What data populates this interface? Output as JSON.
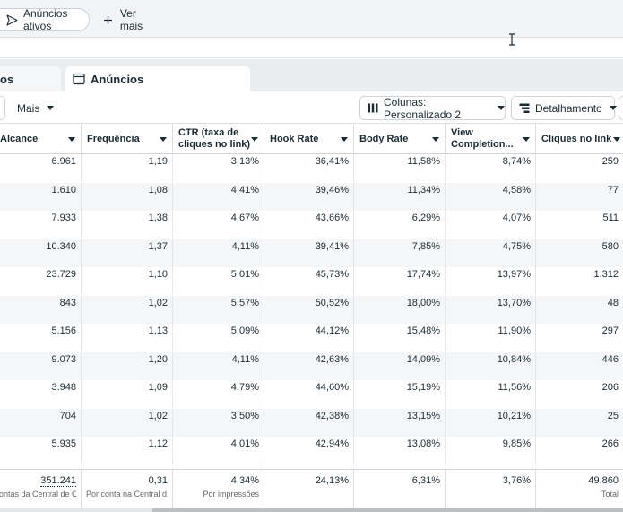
{
  "filters": {
    "active_chip": "Anúncios ativos",
    "more_chip": "Ver mais"
  },
  "tabs": {
    "left_partial": "os",
    "ads": "Anúncios"
  },
  "toolbar": {
    "mais": "Mais",
    "columns": "Colunas: Personalizado 2",
    "breakdown": "Detalhamento"
  },
  "table": {
    "headers": [
      {
        "line1": "Alcance",
        "line2": ""
      },
      {
        "line1": "Frequência",
        "line2": ""
      },
      {
        "line1": "CTR (taxa de",
        "line2": "cliques no link)"
      },
      {
        "line1": "Hook Rate",
        "line2": ""
      },
      {
        "line1": "Body Rate",
        "line2": ""
      },
      {
        "line1": "View",
        "line2": "Completion..."
      },
      {
        "line1": "Cliques no link",
        "line2": ""
      }
    ],
    "rows": [
      [
        "6.961",
        "1,19",
        "3,13%",
        "36,41%",
        "11,58%",
        "8,74%",
        "259"
      ],
      [
        "1.610",
        "1,08",
        "4,41%",
        "39,46%",
        "11,34%",
        "4,58%",
        "77"
      ],
      [
        "7.933",
        "1,38",
        "4,67%",
        "43,66%",
        "6,29%",
        "4,07%",
        "511"
      ],
      [
        "10.340",
        "1,37",
        "4,11%",
        "39,41%",
        "7,85%",
        "4,75%",
        "580"
      ],
      [
        "23.729",
        "1,10",
        "5,01%",
        "45,73%",
        "17,74%",
        "13,97%",
        "1.312"
      ],
      [
        "843",
        "1,02",
        "5,57%",
        "50,52%",
        "18,00%",
        "13,70%",
        "48"
      ],
      [
        "5.156",
        "1,13",
        "5,09%",
        "44,12%",
        "15,48%",
        "11,90%",
        "297"
      ],
      [
        "9.073",
        "1,20",
        "4,11%",
        "42,63%",
        "14,09%",
        "10,84%",
        "446"
      ],
      [
        "3.948",
        "1,09",
        "4,79%",
        "44,60%",
        "15,19%",
        "11,56%",
        "206"
      ],
      [
        "704",
        "1,02",
        "3,50%",
        "42,38%",
        "13,15%",
        "10,21%",
        "25"
      ],
      [
        "5.935",
        "1,12",
        "4,01%",
        "42,94%",
        "13,08%",
        "9,85%",
        "266"
      ]
    ],
    "totals": [
      {
        "value": "351.241",
        "sub": "ontas da Central de C..."
      },
      {
        "value": "0,31",
        "sub": "Por conta na Central d..."
      },
      {
        "value": "4,34%",
        "sub": "Por impressões"
      },
      {
        "value": "24,13%",
        "sub": ""
      },
      {
        "value": "6,31%",
        "sub": ""
      },
      {
        "value": "3,76%",
        "sub": ""
      },
      {
        "value": "49.860",
        "sub": "Total"
      }
    ]
  }
}
